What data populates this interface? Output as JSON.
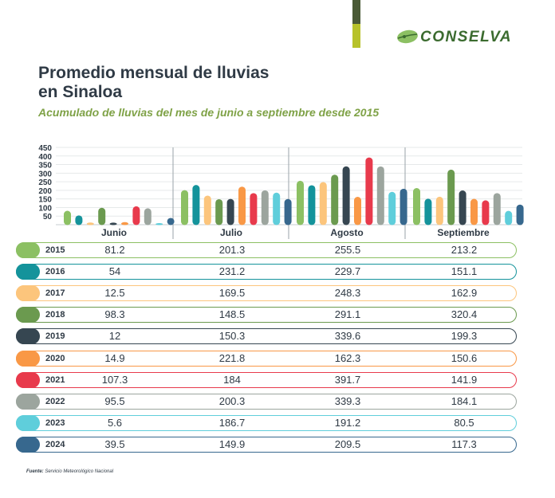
{
  "header": {
    "title": "Promedio mensual de lluvias en Sinaloa",
    "subtitle": "Acumulado de lluvias del mes de junio a septiembre desde 2015",
    "logo_text": "CONSELVA"
  },
  "footer": {
    "source_label": "Fuente:",
    "source_text": "Servicio Meteorológico Nacional"
  },
  "colors": {
    "2015": "#8cc063",
    "2016": "#14939b",
    "2017": "#fcc57c",
    "2018": "#6b9a4f",
    "2019": "#364651",
    "2020": "#f99846",
    "2021": "#e83a4c",
    "2022": "#9ca59e",
    "2023": "#5fcedb",
    "2024": "#37688e"
  },
  "chart_data": {
    "type": "bar",
    "title": "Promedio mensual de lluvias en Sinaloa",
    "subtitle": "Acumulado de lluvias del mes de junio a septiembre desde 2015",
    "categories": [
      "Junio",
      "Julio",
      "Agosto",
      "Septiembre"
    ],
    "y_ticks": [
      50,
      100,
      150,
      200,
      250,
      300,
      350,
      400,
      450
    ],
    "ylim": [
      0,
      450
    ],
    "grid": true,
    "series": [
      {
        "name": "2015",
        "values": [
          81.2,
          201.3,
          255.5,
          213.2
        ]
      },
      {
        "name": "2016",
        "values": [
          54,
          231.2,
          229.7,
          151.1
        ]
      },
      {
        "name": "2017",
        "values": [
          12.5,
          169.5,
          248.3,
          162.9
        ]
      },
      {
        "name": "2018",
        "values": [
          98.3,
          148.5,
          291.1,
          320.4
        ]
      },
      {
        "name": "2019",
        "values": [
          12,
          150.3,
          339.6,
          199.3
        ]
      },
      {
        "name": "2020",
        "values": [
          14.9,
          221.8,
          162.3,
          150.6
        ]
      },
      {
        "name": "2021",
        "values": [
          107.3,
          184,
          391.7,
          141.9
        ]
      },
      {
        "name": "2022",
        "values": [
          95.5,
          200.3,
          339.3,
          184.1
        ]
      },
      {
        "name": "2023",
        "values": [
          5.6,
          186.7,
          191.2,
          80.5
        ]
      },
      {
        "name": "2024",
        "values": [
          39.5,
          149.9,
          209.5,
          117.3
        ]
      }
    ]
  }
}
